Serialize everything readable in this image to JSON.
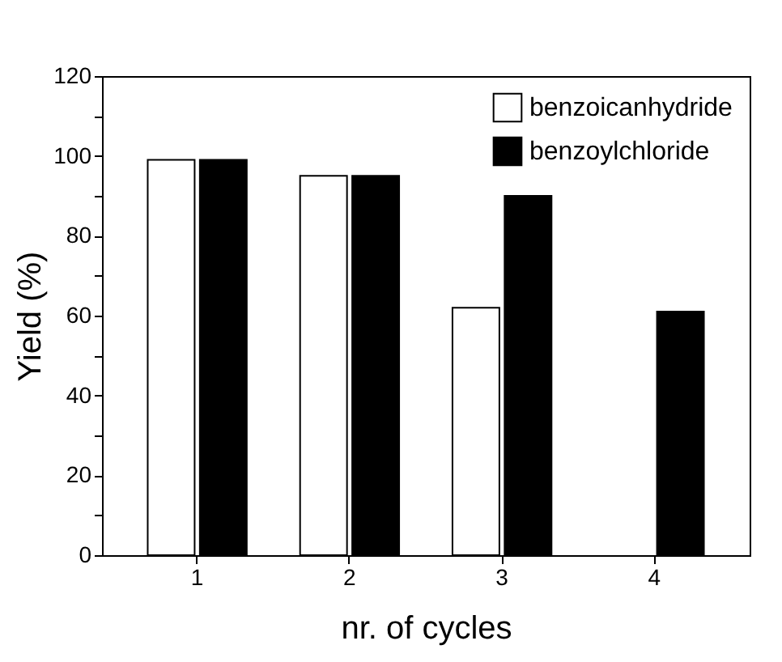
{
  "chart_data": {
    "type": "bar",
    "xlabel": "nr. of cycles",
    "ylabel": "Yield (%)",
    "categories": [
      "1",
      "2",
      "3",
      "4"
    ],
    "series": [
      {
        "name": "benzoicanhydride",
        "color": "#ffffff",
        "values": [
          99,
          95,
          62,
          null
        ]
      },
      {
        "name": "benzoylchloride",
        "color": "#000000",
        "values": [
          99,
          95,
          90,
          61
        ]
      }
    ],
    "ylim": [
      0,
      120
    ],
    "yticks": [
      0,
      {
        "value": 10,
        "label": null
      },
      20,
      {
        "value": 30,
        "label": null
      },
      40,
      {
        "value": 50,
        "label": null
      },
      60,
      {
        "value": 70,
        "label": null
      },
      80,
      {
        "value": 90,
        "label": null
      },
      100,
      {
        "value": 110,
        "label": null
      },
      120
    ],
    "legend": "top right",
    "grid": false
  }
}
